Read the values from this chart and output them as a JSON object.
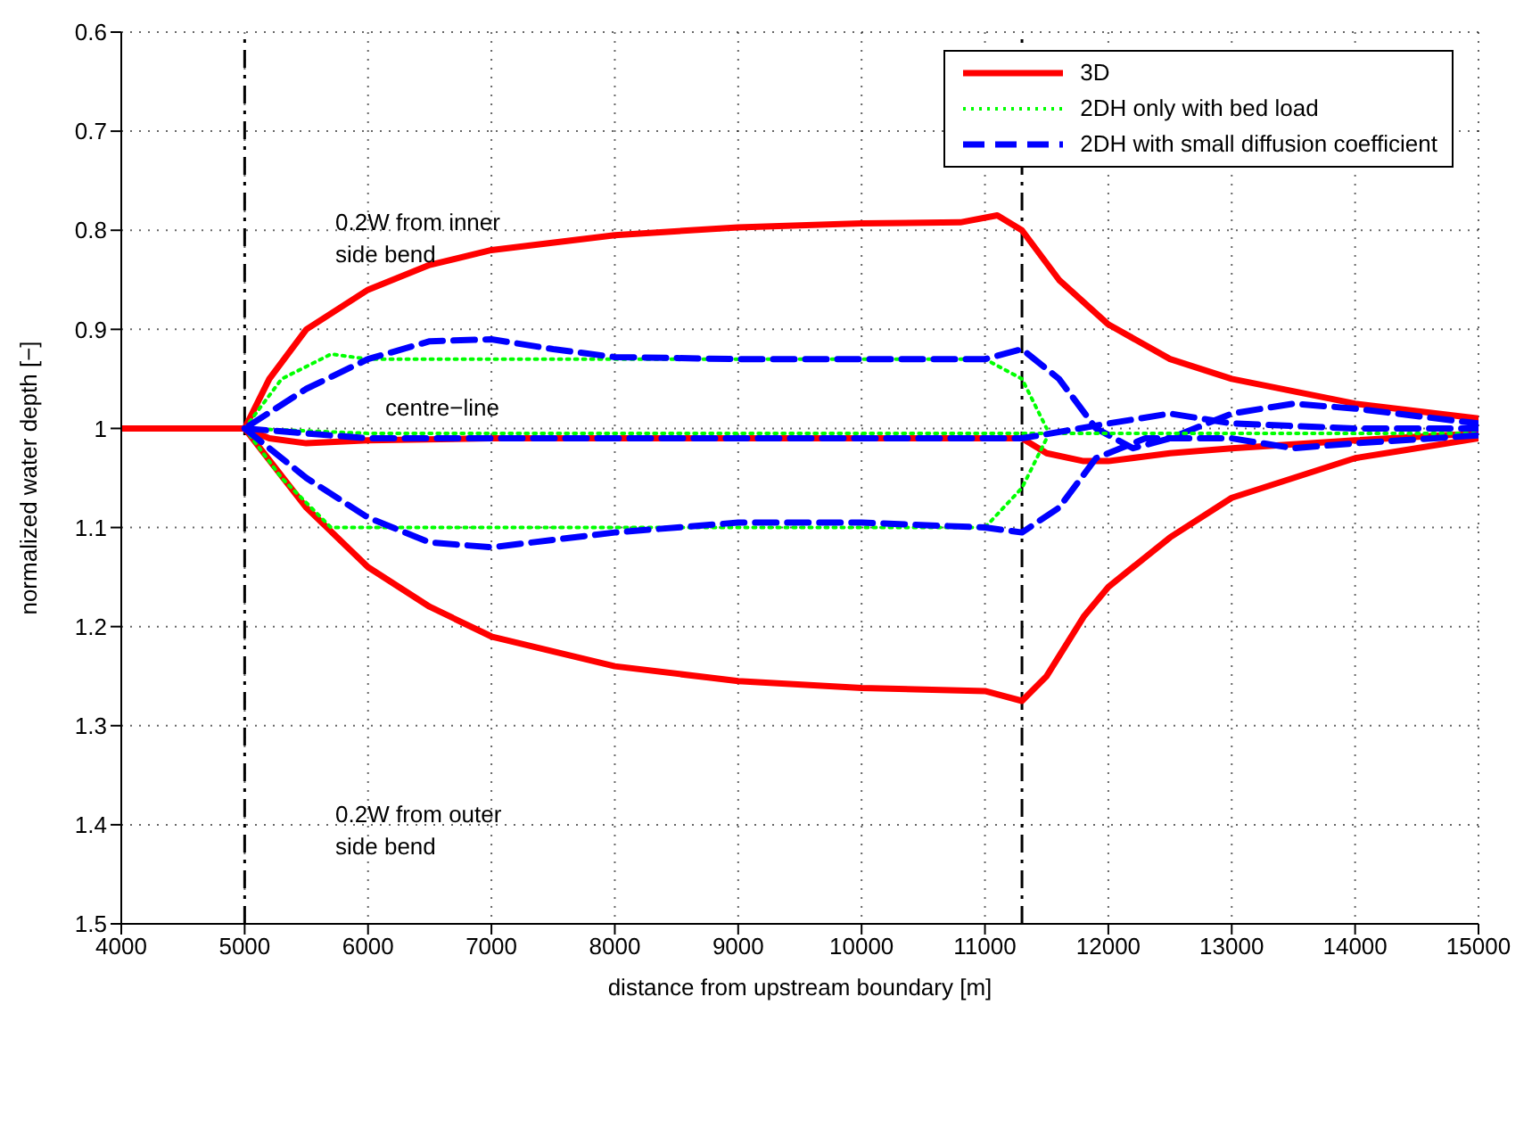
{
  "chart_data": {
    "type": "line",
    "xlabel": "distance from upstream boundary [m]",
    "ylabel": "normalized water depth [−]",
    "xlim": [
      4000,
      15000
    ],
    "xticks": [
      4000,
      5000,
      6000,
      7000,
      8000,
      9000,
      10000,
      11000,
      12000,
      13000,
      14000,
      15000
    ],
    "ylim": [
      1.5,
      0.6
    ],
    "yticks": [
      0.6,
      0.7,
      0.8,
      0.9,
      1,
      1.1,
      1.2,
      1.3,
      1.4,
      1.5
    ],
    "grid": true,
    "legend": "top right",
    "ref_lines": [
      {
        "axis": "x",
        "value": 5000,
        "color": "#000000",
        "line_style": "dashdot"
      },
      {
        "axis": "x",
        "value": 11300,
        "color": "#000000",
        "line_style": "dashdot"
      }
    ],
    "annotations": [
      "0.2W from inner side bend",
      "centre−line",
      "0.2W from outer side bend"
    ],
    "series": [
      {
        "name": "3D",
        "color": "#ff0000",
        "line_style": "solid",
        "x": [
          4000,
          5000,
          5200,
          5500,
          6000,
          6500,
          7000,
          8000,
          9000,
          10000,
          10800,
          11100,
          11300,
          11600,
          12000,
          12500,
          13000,
          14000,
          15000
        ],
        "values": [
          1,
          1,
          0.95,
          0.9,
          0.86,
          0.835,
          0.82,
          0.805,
          0.797,
          0.793,
          0.792,
          0.785,
          0.8,
          0.85,
          0.895,
          0.93,
          0.95,
          0.975,
          0.99
        ]
      },
      {
        "name": "2DH only with bed load",
        "color": "#00ff00",
        "line_style": "dotted",
        "x": [
          5000,
          5300,
          5700,
          6000,
          8000,
          11000,
          11300,
          11500
        ],
        "values": [
          1,
          0.95,
          0.925,
          0.93,
          0.93,
          0.93,
          0.95,
          1
        ]
      },
      {
        "name": "2DH with small diffusion coefficient",
        "color": "#0000ff",
        "line_style": "dashed",
        "x": [
          4000,
          5000,
          5500,
          6000,
          6500,
          7000,
          7500,
          8000,
          9000,
          10000,
          11000,
          11300,
          11600,
          11900,
          12200,
          12500,
          13000,
          13500,
          14000,
          15000
        ],
        "values": [
          1,
          1,
          0.96,
          0.93,
          0.912,
          0.91,
          0.92,
          0.928,
          0.93,
          0.93,
          0.93,
          0.92,
          0.95,
          1,
          1.02,
          1.01,
          0.985,
          0.975,
          0.98,
          0.995
        ]
      },
      {
        "color": "#ff0000",
        "line_style": "solid",
        "x": [
          4000,
          5000,
          5200,
          5500,
          6000,
          7000,
          11300,
          11500,
          11800,
          12000,
          12500,
          13000,
          14000,
          15000
        ],
        "values": [
          1,
          1,
          1.01,
          1.015,
          1.012,
          1.01,
          1.01,
          1.025,
          1.033,
          1.033,
          1.025,
          1.02,
          1.012,
          1.005
        ]
      },
      {
        "color": "#ff0000",
        "line_style": "solid",
        "x": [
          5000,
          5500,
          6000,
          6500,
          7000,
          8000,
          9000,
          10000,
          11000,
          11300,
          11500,
          11800,
          12000,
          12500,
          13000,
          14000,
          15000
        ],
        "values": [
          1,
          1.08,
          1.14,
          1.18,
          1.21,
          1.24,
          1.255,
          1.262,
          1.265,
          1.275,
          1.25,
          1.19,
          1.16,
          1.11,
          1.07,
          1.03,
          1.01
        ]
      },
      {
        "color": "#00ff00",
        "line_style": "dotted",
        "x": [
          5000,
          5300,
          5700,
          6000,
          8000,
          11000,
          11300,
          11500
        ],
        "values": [
          1,
          1.05,
          1.1,
          1.1,
          1.1,
          1.1,
          1.06,
          1.01
        ]
      },
      {
        "color": "#00ff00",
        "line_style": "dotted",
        "x": [
          5000,
          6000,
          11300,
          12000,
          15000
        ],
        "values": [
          1,
          1.005,
          1.005,
          1.005,
          1.005
        ]
      },
      {
        "color": "#0000ff",
        "line_style": "dashed",
        "x": [
          5000,
          6000,
          11300,
          12000,
          12500,
          13000,
          14000,
          15000
        ],
        "values": [
          1,
          1.01,
          1.01,
          0.995,
          0.985,
          0.995,
          1,
          1
        ]
      },
      {
        "color": "#0000ff",
        "line_style": "dashed",
        "x": [
          5000,
          5500,
          6000,
          6500,
          7000,
          8000,
          9000,
          10000,
          11000,
          11300,
          11600,
          11900,
          12300,
          13000,
          13500,
          14000,
          15000
        ],
        "values": [
          1,
          1.05,
          1.09,
          1.115,
          1.12,
          1.105,
          1.095,
          1.095,
          1.1,
          1.105,
          1.08,
          1.03,
          1.01,
          1.01,
          1.02,
          1.015,
          1.007
        ]
      }
    ]
  }
}
